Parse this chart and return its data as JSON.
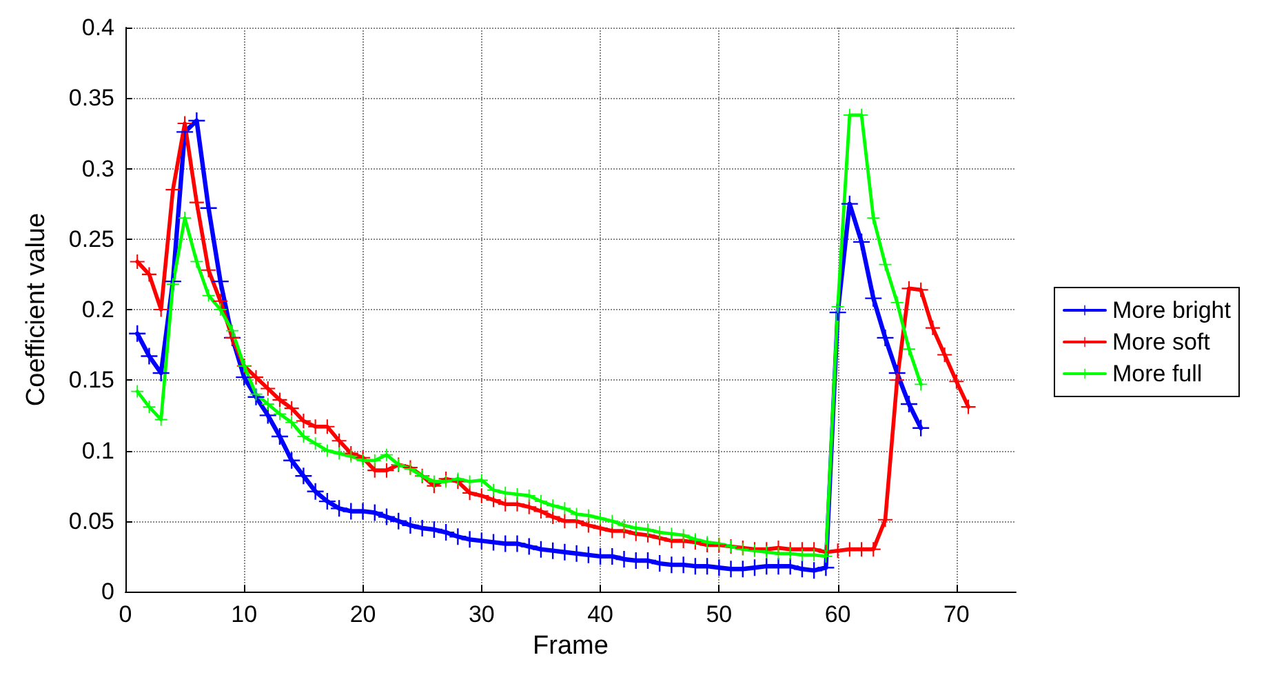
{
  "chart_data": {
    "type": "line",
    "xlabel": "Frame",
    "ylabel": "Coefficient value",
    "xlim": [
      0,
      75
    ],
    "xticks": [
      0,
      10,
      20,
      30,
      40,
      50,
      60,
      70
    ],
    "ylim": [
      0,
      0.4
    ],
    "yticks": [
      0,
      0.05,
      0.1,
      0.15,
      0.2,
      0.25,
      0.3,
      0.35,
      0.4
    ],
    "grid": true,
    "legend": "right",
    "marker": "cross",
    "line_style": "solid",
    "x": [
      1,
      2,
      3,
      4,
      5,
      6,
      7,
      8,
      9,
      10,
      11,
      12,
      13,
      14,
      15,
      16,
      17,
      18,
      19,
      20,
      21,
      22,
      23,
      24,
      25,
      26,
      27,
      28,
      29,
      30,
      31,
      32,
      33,
      34,
      35,
      36,
      37,
      38,
      39,
      40,
      41,
      42,
      43,
      44,
      45,
      46,
      47,
      48,
      49,
      50,
      51,
      52,
      53,
      54,
      55,
      56,
      57,
      58,
      59,
      60,
      61,
      62,
      63,
      64,
      65,
      66,
      67
    ],
    "series": [
      {
        "name": "More bright",
        "color": "#0000ff",
        "values": [
          0.183,
          0.167,
          0.155,
          0.22,
          0.326,
          0.334,
          0.272,
          0.22,
          0.18,
          0.152,
          0.138,
          0.125,
          0.11,
          0.093,
          0.082,
          0.071,
          0.064,
          0.059,
          0.057,
          0.057,
          0.056,
          0.053,
          0.05,
          0.047,
          0.045,
          0.044,
          0.042,
          0.039,
          0.037,
          0.036,
          0.035,
          0.034,
          0.034,
          0.032,
          0.03,
          0.029,
          0.028,
          0.027,
          0.026,
          0.025,
          0.025,
          0.023,
          0.022,
          0.022,
          0.02,
          0.019,
          0.019,
          0.018,
          0.018,
          0.017,
          0.016,
          0.016,
          0.017,
          0.018,
          0.018,
          0.018,
          0.016,
          0.015,
          0.017,
          0.198,
          0.275,
          0.248,
          0.208,
          0.18,
          0.155,
          0.133,
          0.116
        ]
      },
      {
        "name": "More soft",
        "color": "#ff0000",
        "x": [
          1,
          2,
          3,
          4,
          5,
          6,
          7,
          8,
          9,
          10,
          11,
          12,
          13,
          14,
          15,
          16,
          17,
          18,
          19,
          20,
          21,
          22,
          23,
          24,
          25,
          26,
          27,
          28,
          29,
          30,
          31,
          32,
          33,
          34,
          35,
          36,
          37,
          38,
          39,
          40,
          41,
          42,
          43,
          44,
          45,
          46,
          47,
          48,
          49,
          50,
          51,
          52,
          53,
          54,
          55,
          56,
          57,
          58,
          59,
          60,
          61,
          62,
          63,
          64,
          65,
          66,
          67,
          68,
          69,
          70,
          71
        ],
        "values": [
          0.234,
          0.225,
          0.2,
          0.285,
          0.332,
          0.276,
          0.228,
          0.206,
          0.18,
          0.16,
          0.152,
          0.144,
          0.136,
          0.13,
          0.121,
          0.117,
          0.117,
          0.107,
          0.098,
          0.095,
          0.086,
          0.086,
          0.09,
          0.088,
          0.082,
          0.075,
          0.08,
          0.078,
          0.07,
          0.068,
          0.065,
          0.062,
          0.062,
          0.06,
          0.057,
          0.053,
          0.05,
          0.05,
          0.047,
          0.045,
          0.043,
          0.043,
          0.041,
          0.04,
          0.038,
          0.036,
          0.036,
          0.035,
          0.033,
          0.033,
          0.032,
          0.031,
          0.03,
          0.03,
          0.031,
          0.03,
          0.03,
          0.03,
          0.028,
          0.029,
          0.03,
          0.03,
          0.03,
          0.051,
          0.15,
          0.215,
          0.214,
          0.187,
          0.168,
          0.149,
          0.131
        ]
      },
      {
        "name": "More full",
        "color": "#00ff00",
        "values": [
          0.142,
          0.131,
          0.122,
          0.218,
          0.265,
          0.234,
          0.21,
          0.2,
          0.185,
          0.16,
          0.14,
          0.133,
          0.126,
          0.12,
          0.11,
          0.105,
          0.1,
          0.098,
          0.096,
          0.093,
          0.093,
          0.097,
          0.09,
          0.087,
          0.082,
          0.078,
          0.078,
          0.08,
          0.078,
          0.079,
          0.072,
          0.07,
          0.069,
          0.068,
          0.064,
          0.061,
          0.059,
          0.055,
          0.054,
          0.052,
          0.05,
          0.047,
          0.045,
          0.044,
          0.042,
          0.041,
          0.04,
          0.037,
          0.035,
          0.034,
          0.032,
          0.03,
          0.029,
          0.028,
          0.027,
          0.027,
          0.026,
          0.026,
          0.025,
          0.202,
          0.338,
          0.338,
          0.265,
          0.232,
          0.205,
          0.172,
          0.147
        ]
      }
    ]
  }
}
